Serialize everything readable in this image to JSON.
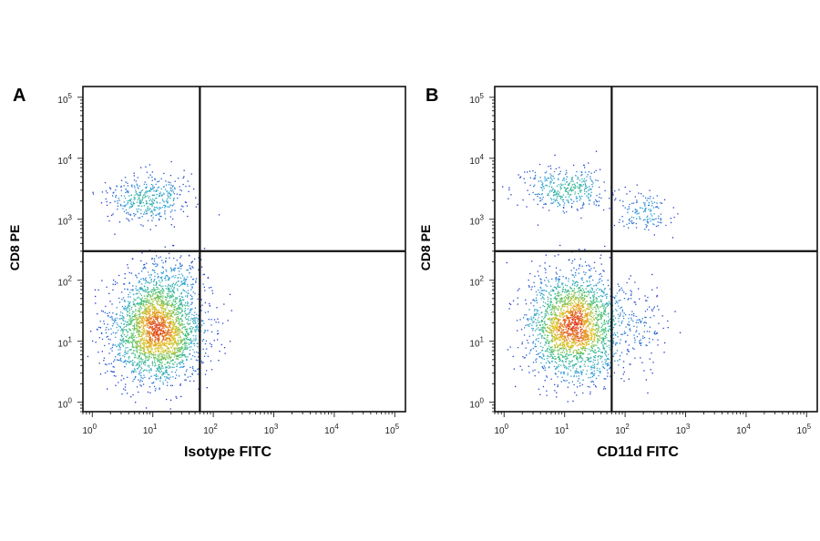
{
  "chart_data": [
    {
      "type": "scatter",
      "panel_label": "A",
      "xlabel": "Isotype FITC",
      "ylabel": "CD8 PE",
      "xscale": "log",
      "yscale": "log",
      "xlim": [
        0.7,
        150000
      ],
      "ylim": [
        0.7,
        150000
      ],
      "x_ticks": [
        {
          "base": "10",
          "exp": "0"
        },
        {
          "base": "10",
          "exp": "1"
        },
        {
          "base": "10",
          "exp": "2"
        },
        {
          "base": "10",
          "exp": "3"
        },
        {
          "base": "10",
          "exp": "4"
        },
        {
          "base": "10",
          "exp": "5"
        }
      ],
      "y_ticks": [
        {
          "base": "10",
          "exp": "0"
        },
        {
          "base": "10",
          "exp": "1"
        },
        {
          "base": "10",
          "exp": "2"
        },
        {
          "base": "10",
          "exp": "3"
        },
        {
          "base": "10",
          "exp": "4"
        },
        {
          "base": "10",
          "exp": "5"
        }
      ],
      "quadrant_gate": {
        "x": 60,
        "y": 300
      },
      "color_scale": [
        "#1e22c8",
        "#2aa0d8",
        "#3ec070",
        "#e6c21e",
        "#e03a1e"
      ],
      "populations": [
        {
          "center": [
            12,
            15
          ],
          "spread_log10": [
            0.38,
            0.42
          ],
          "count": 2600
        },
        {
          "center": [
            8,
            2200
          ],
          "spread_log10": [
            0.32,
            0.2
          ],
          "count": 420
        },
        {
          "center": [
            18,
            110
          ],
          "spread_log10": [
            0.3,
            0.22
          ],
          "count": 180
        }
      ]
    },
    {
      "type": "scatter",
      "panel_label": "B",
      "xlabel": "CD11d FITC",
      "ylabel": "CD8 PE",
      "xscale": "log",
      "yscale": "log",
      "xlim": [
        0.7,
        150000
      ],
      "ylim": [
        0.7,
        150000
      ],
      "x_ticks": [
        {
          "base": "10",
          "exp": "0"
        },
        {
          "base": "10",
          "exp": "1"
        },
        {
          "base": "10",
          "exp": "2"
        },
        {
          "base": "10",
          "exp": "3"
        },
        {
          "base": "10",
          "exp": "4"
        },
        {
          "base": "10",
          "exp": "5"
        }
      ],
      "y_ticks": [
        {
          "base": "10",
          "exp": "0"
        },
        {
          "base": "10",
          "exp": "1"
        },
        {
          "base": "10",
          "exp": "2"
        },
        {
          "base": "10",
          "exp": "3"
        },
        {
          "base": "10",
          "exp": "4"
        },
        {
          "base": "10",
          "exp": "5"
        }
      ],
      "quadrant_gate": {
        "x": 60,
        "y": 300
      },
      "color_scale": [
        "#1e22c8",
        "#2aa0d8",
        "#3ec070",
        "#e6c21e",
        "#e03a1e"
      ],
      "populations": [
        {
          "center": [
            15,
            18
          ],
          "spread_log10": [
            0.38,
            0.42
          ],
          "count": 2400
        },
        {
          "center": [
            10,
            3000
          ],
          "spread_log10": [
            0.35,
            0.18
          ],
          "count": 380
        },
        {
          "center": [
            220,
            1300
          ],
          "spread_log10": [
            0.25,
            0.15
          ],
          "count": 140
        },
        {
          "center": [
            200,
            18
          ],
          "spread_log10": [
            0.22,
            0.35
          ],
          "count": 120
        }
      ]
    }
  ]
}
